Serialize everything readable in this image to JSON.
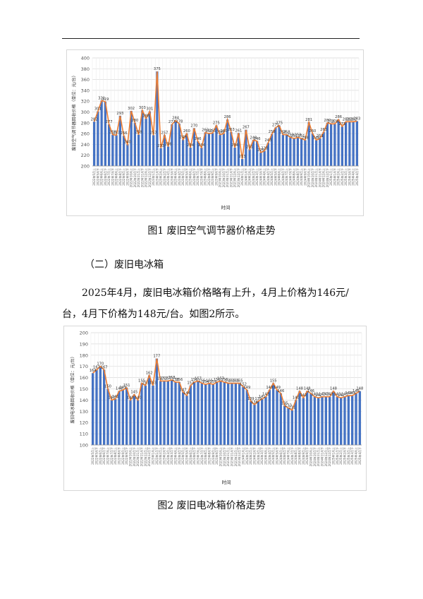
{
  "figure1": {
    "caption": "图1 废旧空气调节器价格走势",
    "ylabel": "废旧空气调节器回收价格（单位：元/台）",
    "xlabel": "时间",
    "chart_data": {
      "type": "bar",
      "ylim": [
        200,
        400
      ],
      "yticks": [
        200,
        220,
        240,
        260,
        280,
        300,
        320,
        340,
        360,
        380,
        400
      ],
      "categories": [
        "2022年5月上",
        "2022年5月下",
        "2022年6月上",
        "2022年6月下",
        "2022年7月上",
        "2022年7月下",
        "2022年8月上",
        "2022年8月下",
        "2022年9月上",
        "2022年9月下",
        "2022年10月上",
        "2022年10月下",
        "2022年11月上",
        "2022年11月下",
        "2022年12月上",
        "2022年12月下",
        "2023年1月上",
        "2023年1月下",
        "2023年2月上",
        "2023年2月下",
        "2023年3月上",
        "2023年3月下",
        "2023年4月上",
        "2023年4月下",
        "2023年5月上",
        "2023年5月下",
        "2023年6月上",
        "2023年6月下",
        "2023年7月上",
        "2023年7月下",
        "2023年8月上",
        "2023年8月下",
        "2023年9月上",
        "2023年9月下",
        "2023年10月上",
        "2023年10月下",
        "2023年11月上",
        "2023年11月下",
        "2023年12月上",
        "2023年12月下",
        "2024年1月上",
        "2024年1月下",
        "2024年2月上",
        "2024年2月下",
        "2024年3月上",
        "2024年3月下",
        "2024年4月上",
        "2024年4月下",
        "2024年5月上",
        "2024年5月下",
        "2024年6月上",
        "2024年6月下",
        "2024年7月上",
        "2024年7月下",
        "2024年8月上",
        "2024年8月下",
        "2024年9月上",
        "2024年9月下",
        "2024年10月上",
        "2024年10月下",
        "2024年11月上",
        "2024年11月下",
        "2024年12月上",
        "2024年12月下",
        "2025年1月上",
        "2025年1月下",
        "2025年2月上",
        "2025年2月下",
        "2025年3月上",
        "2025年3月下",
        "2025年4月上",
        "2025年4月下"
      ],
      "values": [
        282,
        301,
        321,
        319,
        277,
        258,
        257,
        293,
        256,
        240,
        302,
        280,
        258,
        303,
        288,
        301,
        257,
        375,
        233,
        257,
        236,
        277,
        284,
        278,
        249,
        260,
        234,
        270,
        246,
        234,
        262,
        260,
        261,
        275,
        258,
        260,
        286,
        263,
        234,
        261,
        213,
        267,
        231,
        248,
        246,
        225,
        228,
        243,
        259,
        271,
        275,
        258,
        258,
        253,
        251,
        253,
        251,
        248,
        281,
        260,
        248,
        251,
        263,
        280,
        278,
        278,
        286,
        273,
        282,
        282,
        282,
        283
      ],
      "labels": [
        "282",
        "301",
        "321",
        "319",
        "277",
        "258",
        "257",
        "293",
        "256",
        "240",
        "302",
        "280",
        "258",
        "303",
        "288",
        "301",
        "257",
        "375",
        "233",
        "257",
        "236",
        "277",
        "284",
        "278",
        "249",
        "260",
        "234",
        "270",
        "246",
        "234",
        "262",
        "260",
        "261",
        "275",
        "258",
        "260",
        "286",
        "263",
        "234",
        "261",
        "213",
        "267",
        "231",
        "248",
        "246",
        "225",
        "228",
        "243",
        "259",
        "271",
        "275",
        "258",
        "258",
        "253",
        "251",
        "253",
        "251",
        "248",
        "281",
        "260",
        "248",
        "251",
        "263",
        "280",
        "278",
        "278",
        "286",
        "273",
        "282",
        "282",
        "282",
        "283"
      ]
    }
  },
  "section": {
    "heading": "（二）废旧电冰箱"
  },
  "paragraph": {
    "line1": "2025年4月，废旧电冰箱价格略有上升，4月上价格为146元/",
    "line2": "台，4月下价格为148元/台。如图2所示。"
  },
  "figure2": {
    "caption": "图2 废旧电冰箱价格走势",
    "ylabel": "废旧电冰箱回收价格（单位：元/台）",
    "xlabel": "时间",
    "chart_data": {
      "type": "bar",
      "ylim": [
        100,
        200
      ],
      "yticks": [
        100,
        110,
        120,
        130,
        140,
        150,
        160,
        170,
        180,
        190,
        200
      ],
      "categories": [
        "2022年5月上",
        "2022年5月下",
        "2022年6月上",
        "2022年6月下",
        "2022年7月上",
        "2022年7月下",
        "2022年8月上",
        "2022年8月下",
        "2022年9月上",
        "2022年9月下",
        "2022年10月上",
        "2022年10月下",
        "2022年11月上",
        "2022年11月下",
        "2022年12月上",
        "2022年12月下",
        "2023年1月上",
        "2023年1月下",
        "2023年2月上",
        "2023年2月下",
        "2023年3月上",
        "2023年3月下",
        "2023年4月上",
        "2023年4月下",
        "2023年5月上",
        "2023年5月下",
        "2023年6月上",
        "2023年6月下",
        "2023年7月上",
        "2023年7月下",
        "2023年8月上",
        "2023年8月下",
        "2023年9月上",
        "2023年9月下",
        "2023年10月上",
        "2023年10月下",
        "2023年11月上",
        "2023年11月下",
        "2023年12月上",
        "2023年12月下",
        "2024年1月上",
        "2024年1月下",
        "2024年2月上",
        "2024年2月下",
        "2024年3月上",
        "2024年3月下",
        "2024年4月上",
        "2024年4月下",
        "2024年5月上",
        "2024年5月下",
        "2024年6月上",
        "2024年6月下",
        "2024年7月上",
        "2024年7月下",
        "2024年8月上",
        "2024年8月下",
        "2024年9月上",
        "2024年9月下",
        "2024年10月上",
        "2024年10月下",
        "2024年11月上",
        "2024年11月下",
        "2024年12月上",
        "2024年12月下",
        "2025年1月上",
        "2025年1月下",
        "2025年2月上",
        "2025年2月下",
        "2025年3月上",
        "2025年3月下",
        "2025年4月上",
        "2025年4月下"
      ],
      "values": [
        164,
        167,
        170,
        167,
        150,
        140,
        141,
        148,
        149,
        151,
        140,
        145,
        140,
        155,
        153,
        162,
        153,
        177,
        157,
        157,
        157,
        158,
        156,
        156,
        147,
        144,
        153,
        156,
        157,
        155,
        154,
        155,
        154,
        156,
        157,
        156,
        155,
        155,
        155,
        155,
        152,
        149,
        139,
        136,
        139,
        141,
        143,
        149,
        155,
        149,
        146,
        135,
        133,
        131,
        140,
        148,
        142,
        148,
        146,
        143,
        142,
        143,
        143,
        143,
        148,
        143,
        142,
        143,
        144,
        144,
        146,
        148
      ],
      "labels": [
        "164",
        "167",
        "170",
        "167",
        "150",
        "140",
        "141",
        "148",
        "149",
        "151",
        "140",
        "145",
        "140",
        "155",
        "153",
        "162",
        "153",
        "177",
        "157",
        "157",
        "157",
        "158",
        "156",
        "156",
        "147",
        "144",
        "153",
        "156",
        "157",
        "155",
        "154",
        "155",
        "154",
        "156",
        "157",
        "156",
        "155",
        "155",
        "155",
        "155",
        "152",
        "149",
        "139",
        "136",
        "139",
        "141",
        "143",
        "149",
        "155",
        "149",
        "146",
        "135",
        "133",
        "131",
        "140",
        "148",
        "142",
        "148",
        "146",
        "143",
        "142",
        "143",
        "143",
        "143",
        "148",
        "143",
        "142",
        "143",
        "144",
        "144",
        "146",
        "148"
      ]
    }
  }
}
